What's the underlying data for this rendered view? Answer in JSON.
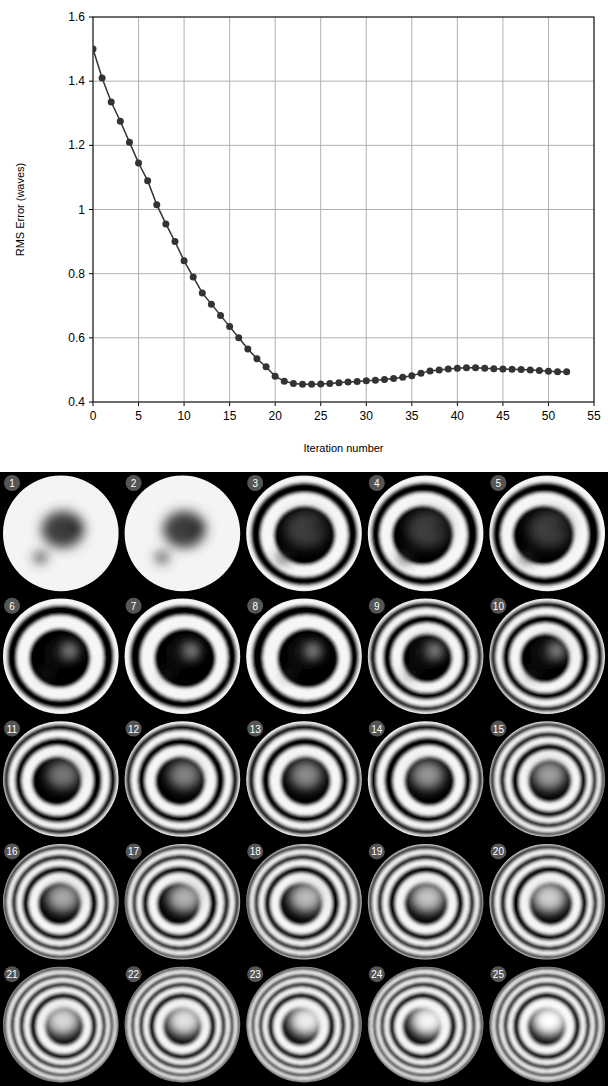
{
  "chart_data": {
    "type": "line",
    "x_label": "Iteration number",
    "y_label": "RMS Error (waves)",
    "x": [
      0,
      1,
      2,
      3,
      4,
      5,
      6,
      7,
      8,
      9,
      10,
      11,
      12,
      13,
      14,
      15,
      16,
      17,
      18,
      19,
      20,
      21,
      22,
      23,
      24,
      25,
      26,
      27,
      28,
      29,
      30,
      31,
      32,
      33,
      34,
      35,
      36,
      37,
      38,
      39,
      40,
      41,
      42,
      43,
      44,
      45,
      46,
      47,
      48,
      49,
      50,
      51,
      52
    ],
    "values": [
      1.5,
      1.41,
      1.335,
      1.275,
      1.21,
      1.145,
      1.09,
      1.015,
      0.955,
      0.9,
      0.84,
      0.79,
      0.74,
      0.705,
      0.67,
      0.635,
      0.6,
      0.565,
      0.535,
      0.51,
      0.48,
      0.465,
      0.458,
      0.455,
      0.455,
      0.456,
      0.458,
      0.46,
      0.462,
      0.464,
      0.466,
      0.468,
      0.47,
      0.473,
      0.477,
      0.482,
      0.49,
      0.497,
      0.5,
      0.503,
      0.505,
      0.507,
      0.507,
      0.505,
      0.504,
      0.503,
      0.502,
      0.501,
      0.5,
      0.498,
      0.496,
      0.494,
      0.494
    ],
    "color": "#333333",
    "marker": "circle",
    "line_style": "solid",
    "grid": true,
    "xlim": [
      0,
      55
    ],
    "xticks": [
      0,
      5,
      10,
      15,
      20,
      25,
      30,
      35,
      40,
      45,
      50,
      55
    ],
    "ylim": [
      0.4,
      1.6
    ],
    "yticks": [
      0.4,
      0.6,
      0.8,
      1,
      1.2,
      1.4,
      1.6
    ]
  },
  "image_grid": {
    "labels": [
      1,
      2,
      3,
      4,
      5,
      6,
      7,
      8,
      9,
      10,
      11,
      12,
      13,
      14,
      15,
      16,
      17,
      18,
      19,
      20,
      21,
      22,
      23,
      24,
      25
    ]
  }
}
